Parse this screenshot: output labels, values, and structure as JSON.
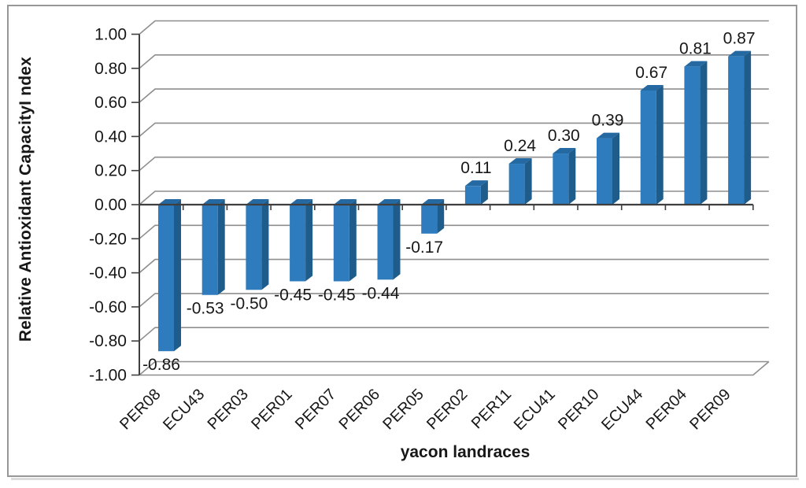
{
  "chart_data": {
    "type": "bar",
    "style": "3d-clustered-column",
    "title": "",
    "xlabel": "yacon landraces",
    "ylabel": "Relative Antioxidant CapacityI ndex",
    "categories": [
      "PER08",
      "ECU43",
      "PER03",
      "PER01",
      "PER07",
      "PER06",
      "PER05",
      "PER02",
      "PER11",
      "ECU41",
      "PER10",
      "ECU44",
      "PER04",
      "PER09"
    ],
    "values": [
      -0.86,
      -0.53,
      -0.5,
      -0.45,
      -0.45,
      -0.44,
      -0.17,
      0.11,
      0.24,
      0.3,
      0.39,
      0.67,
      0.81,
      0.87
    ],
    "data_labels": [
      "-0.86",
      "-0.53",
      "-0.50",
      "-0.45",
      "-0.45",
      "-0.44",
      "-0.17",
      "0.11",
      "0.24",
      "0.30",
      "0.39",
      "0.67",
      "0.81",
      "0.87"
    ],
    "ylim": [
      -1.0,
      1.0
    ],
    "ytick_step": 0.2,
    "ytick_labels": [
      "1.00",
      "0.80",
      "0.60",
      "0.40",
      "0.20",
      "0.00",
      "-0.20",
      "-0.40",
      "-0.60",
      "-0.80",
      "-1.00"
    ],
    "grid": true,
    "legend": "none",
    "colors": {
      "bar_face": "#2E7CBE",
      "bar_side": "#1E5C8C",
      "bar_top": "#2569A3",
      "gridline": "#8E8E8E",
      "axis": "#3F3F3F",
      "text": "#171717",
      "frame_border": "#979797",
      "frame_shadow": "#DCDCDC",
      "background": "#FFFFFF"
    }
  }
}
